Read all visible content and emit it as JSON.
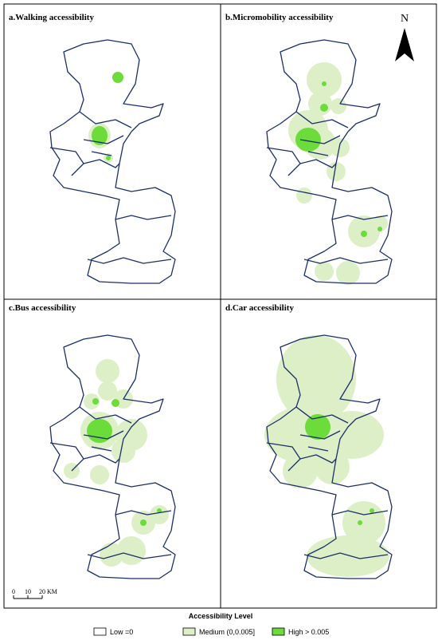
{
  "panels": [
    {
      "title": "a.Walking accessibility"
    },
    {
      "title": "b.Micromobility accessibility"
    },
    {
      "title": "c.Bus accessibility"
    },
    {
      "title": "d.Car accessibility"
    }
  ],
  "north_arrow": {
    "label": "N"
  },
  "scale_bar": {
    "ticks": [
      "0",
      "10",
      "20 KM"
    ]
  },
  "legend": {
    "title": "Accessibility Level",
    "items": [
      {
        "label": "Low =0"
      },
      {
        "label": "Medium (0,0.005]"
      },
      {
        "label": "High > 0.005"
      }
    ]
  }
}
